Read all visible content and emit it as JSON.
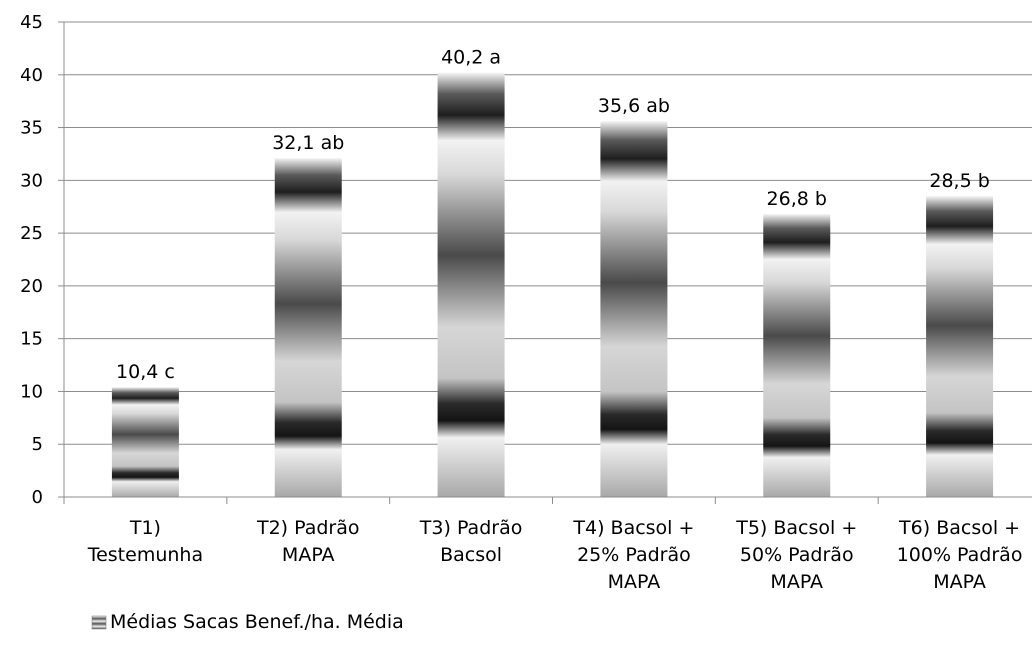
{
  "chart_data": {
    "type": "bar",
    "title": "",
    "xlabel": "",
    "ylabel": "",
    "ylim": [
      0,
      45
    ],
    "yticks": [
      0,
      5,
      10,
      15,
      20,
      25,
      30,
      35,
      40,
      45
    ],
    "grid": true,
    "legend_position": "bottom-left",
    "categories": [
      [
        "T1)",
        "Testemunha"
      ],
      [
        "T2) Padrão",
        "MAPA"
      ],
      [
        "T3) Padrão",
        "Bacsol"
      ],
      [
        "T4) Bacsol +",
        "25% Padrão",
        "MAPA"
      ],
      [
        "T5) Bacsol +",
        "50% Padrão",
        "MAPA"
      ],
      [
        "T6) Bacsol +",
        "100% Padrão",
        "MAPA"
      ]
    ],
    "series": [
      {
        "name": "Médias Sacas Benef./ha. Média",
        "values": [
          10.4,
          32.1,
          40.2,
          35.6,
          26.8,
          28.5
        ],
        "labels": [
          "10,4 c",
          "32,1 ab",
          "40,2 a",
          "35,6 ab",
          "26,8 b",
          "28,5 b"
        ]
      }
    ]
  }
}
